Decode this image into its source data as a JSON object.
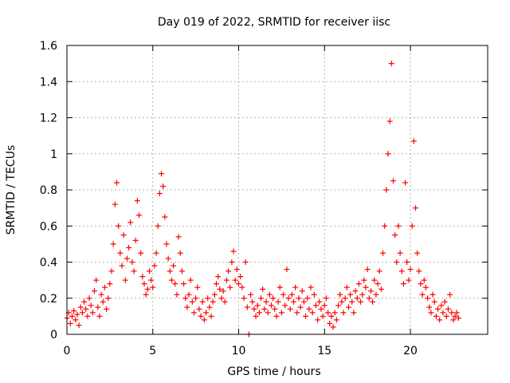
{
  "chart_data": {
    "type": "scatter",
    "title": "Day 019 of 2022, SRMTID for receiver iisc",
    "xlabel": "GPS time / hours",
    "ylabel": "SRMTID / TECUs",
    "xlim": [
      0,
      24.5
    ],
    "ylim": [
      0,
      1.6
    ],
    "x_ticks": [
      0,
      5,
      10,
      15,
      20
    ],
    "x_tick_labels": [
      "0",
      "5",
      "10",
      "15",
      "20"
    ],
    "y_ticks": [
      0,
      0.2,
      0.4,
      0.6,
      0.8,
      1.0,
      1.2,
      1.4,
      1.6
    ],
    "y_tick_labels": [
      "0",
      "0.2",
      "0.4",
      "0.6",
      "0.8",
      "1",
      "1.2",
      "1.4",
      "1.6"
    ],
    "grid": true,
    "marker": "+",
    "marker_color": "#ff0000",
    "series": [
      {
        "name": "SRMTID",
        "points": [
          [
            0.0,
            0.09
          ],
          [
            0.1,
            0.12
          ],
          [
            0.2,
            0.06
          ],
          [
            0.3,
            0.1
          ],
          [
            0.4,
            0.13
          ],
          [
            0.5,
            0.08
          ],
          [
            0.6,
            0.11
          ],
          [
            0.7,
            0.05
          ],
          [
            0.8,
            0.15
          ],
          [
            0.9,
            0.12
          ],
          [
            1.0,
            0.18
          ],
          [
            1.1,
            0.14
          ],
          [
            1.2,
            0.1
          ],
          [
            1.3,
            0.2
          ],
          [
            1.4,
            0.16
          ],
          [
            1.5,
            0.12
          ],
          [
            1.6,
            0.24
          ],
          [
            1.7,
            0.3
          ],
          [
            1.8,
            0.15
          ],
          [
            1.9,
            0.1
          ],
          [
            2.0,
            0.22
          ],
          [
            2.1,
            0.18
          ],
          [
            2.2,
            0.26
          ],
          [
            2.3,
            0.14
          ],
          [
            2.4,
            0.2
          ],
          [
            2.5,
            0.28
          ],
          [
            2.6,
            0.35
          ],
          [
            2.7,
            0.5
          ],
          [
            2.8,
            0.72
          ],
          [
            2.9,
            0.84
          ],
          [
            3.0,
            0.6
          ],
          [
            3.1,
            0.45
          ],
          [
            3.2,
            0.38
          ],
          [
            3.3,
            0.55
          ],
          [
            3.4,
            0.3
          ],
          [
            3.5,
            0.42
          ],
          [
            3.6,
            0.48
          ],
          [
            3.7,
            0.62
          ],
          [
            3.8,
            0.4
          ],
          [
            3.9,
            0.35
          ],
          [
            4.0,
            0.52
          ],
          [
            4.1,
            0.74
          ],
          [
            4.2,
            0.66
          ],
          [
            4.3,
            0.45
          ],
          [
            4.4,
            0.32
          ],
          [
            4.5,
            0.28
          ],
          [
            4.6,
            0.22
          ],
          [
            4.7,
            0.25
          ],
          [
            4.8,
            0.35
          ],
          [
            4.9,
            0.3
          ],
          [
            5.0,
            0.26
          ],
          [
            5.1,
            0.38
          ],
          [
            5.2,
            0.45
          ],
          [
            5.3,
            0.6
          ],
          [
            5.4,
            0.78
          ],
          [
            5.5,
            0.89
          ],
          [
            5.6,
            0.82
          ],
          [
            5.7,
            0.65
          ],
          [
            5.8,
            0.5
          ],
          [
            5.9,
            0.42
          ],
          [
            6.0,
            0.35
          ],
          [
            6.1,
            0.3
          ],
          [
            6.2,
            0.38
          ],
          [
            6.3,
            0.28
          ],
          [
            6.4,
            0.22
          ],
          [
            6.5,
            0.54
          ],
          [
            6.6,
            0.45
          ],
          [
            6.7,
            0.35
          ],
          [
            6.8,
            0.28
          ],
          [
            6.9,
            0.2
          ],
          [
            7.0,
            0.15
          ],
          [
            7.1,
            0.22
          ],
          [
            7.2,
            0.3
          ],
          [
            7.3,
            0.18
          ],
          [
            7.4,
            0.12
          ],
          [
            7.5,
            0.2
          ],
          [
            7.6,
            0.26
          ],
          [
            7.7,
            0.14
          ],
          [
            7.8,
            0.1
          ],
          [
            7.9,
            0.18
          ],
          [
            8.0,
            0.08
          ],
          [
            8.1,
            0.12
          ],
          [
            8.2,
            0.2
          ],
          [
            8.3,
            0.15
          ],
          [
            8.4,
            0.1
          ],
          [
            8.5,
            0.18
          ],
          [
            8.6,
            0.22
          ],
          [
            8.7,
            0.28
          ],
          [
            8.8,
            0.32
          ],
          [
            8.9,
            0.25
          ],
          [
            9.0,
            0.2
          ],
          [
            9.1,
            0.24
          ],
          [
            9.2,
            0.18
          ],
          [
            9.3,
            0.3
          ],
          [
            9.4,
            0.35
          ],
          [
            9.5,
            0.26
          ],
          [
            9.6,
            0.4
          ],
          [
            9.7,
            0.46
          ],
          [
            9.8,
            0.3
          ],
          [
            9.9,
            0.36
          ],
          [
            10.0,
            0.28
          ],
          [
            10.1,
            0.32
          ],
          [
            10.2,
            0.26
          ],
          [
            10.3,
            0.2
          ],
          [
            10.4,
            0.4
          ],
          [
            10.5,
            0.15
          ],
          [
            10.6,
            0.0
          ],
          [
            10.7,
            0.22
          ],
          [
            10.8,
            0.18
          ],
          [
            10.9,
            0.14
          ],
          [
            11.0,
            0.1
          ],
          [
            11.1,
            0.16
          ],
          [
            11.2,
            0.12
          ],
          [
            11.3,
            0.2
          ],
          [
            11.4,
            0.25
          ],
          [
            11.5,
            0.14
          ],
          [
            11.6,
            0.18
          ],
          [
            11.7,
            0.12
          ],
          [
            11.8,
            0.22
          ],
          [
            11.9,
            0.16
          ],
          [
            12.0,
            0.2
          ],
          [
            12.1,
            0.14
          ],
          [
            12.2,
            0.1
          ],
          [
            12.3,
            0.18
          ],
          [
            12.4,
            0.26
          ],
          [
            12.5,
            0.12
          ],
          [
            12.6,
            0.22
          ],
          [
            12.7,
            0.16
          ],
          [
            12.8,
            0.36
          ],
          [
            12.9,
            0.2
          ],
          [
            13.0,
            0.14
          ],
          [
            13.1,
            0.22
          ],
          [
            13.2,
            0.18
          ],
          [
            13.3,
            0.26
          ],
          [
            13.4,
            0.12
          ],
          [
            13.5,
            0.2
          ],
          [
            13.6,
            0.15
          ],
          [
            13.7,
            0.24
          ],
          [
            13.8,
            0.18
          ],
          [
            13.9,
            0.1
          ],
          [
            14.0,
            0.2
          ],
          [
            14.1,
            0.14
          ],
          [
            14.2,
            0.26
          ],
          [
            14.3,
            0.12
          ],
          [
            14.4,
            0.22
          ],
          [
            14.5,
            0.16
          ],
          [
            14.6,
            0.08
          ],
          [
            14.7,
            0.18
          ],
          [
            14.8,
            0.14
          ],
          [
            14.9,
            0.1
          ],
          [
            15.0,
            0.16
          ],
          [
            15.1,
            0.2
          ],
          [
            15.2,
            0.12
          ],
          [
            15.3,
            0.06
          ],
          [
            15.4,
            0.1
          ],
          [
            15.5,
            0.04
          ],
          [
            15.6,
            0.12
          ],
          [
            15.7,
            0.08
          ],
          [
            15.8,
            0.16
          ],
          [
            15.9,
            0.22
          ],
          [
            16.0,
            0.18
          ],
          [
            16.1,
            0.12
          ],
          [
            16.2,
            0.2
          ],
          [
            16.3,
            0.26
          ],
          [
            16.4,
            0.15
          ],
          [
            16.5,
            0.22
          ],
          [
            16.6,
            0.18
          ],
          [
            16.7,
            0.12
          ],
          [
            16.8,
            0.24
          ],
          [
            16.9,
            0.2
          ],
          [
            17.0,
            0.28
          ],
          [
            17.1,
            0.18
          ],
          [
            17.2,
            0.22
          ],
          [
            17.3,
            0.3
          ],
          [
            17.4,
            0.26
          ],
          [
            17.5,
            0.36
          ],
          [
            17.6,
            0.2
          ],
          [
            17.7,
            0.24
          ],
          [
            17.8,
            0.18
          ],
          [
            17.9,
            0.3
          ],
          [
            18.0,
            0.22
          ],
          [
            18.1,
            0.28
          ],
          [
            18.2,
            0.35
          ],
          [
            18.3,
            0.25
          ],
          [
            18.4,
            0.45
          ],
          [
            18.5,
            0.6
          ],
          [
            18.6,
            0.8
          ],
          [
            18.7,
            1.0
          ],
          [
            18.8,
            1.18
          ],
          [
            18.9,
            1.5
          ],
          [
            19.0,
            0.85
          ],
          [
            19.1,
            0.55
          ],
          [
            19.2,
            0.4
          ],
          [
            19.3,
            0.6
          ],
          [
            19.4,
            0.45
          ],
          [
            19.5,
            0.35
          ],
          [
            19.6,
            0.28
          ],
          [
            19.7,
            0.84
          ],
          [
            19.8,
            0.4
          ],
          [
            19.9,
            0.3
          ],
          [
            20.0,
            0.36
          ],
          [
            20.1,
            0.6
          ],
          [
            20.2,
            1.07
          ],
          [
            20.3,
            0.7
          ],
          [
            20.4,
            0.45
          ],
          [
            20.5,
            0.35
          ],
          [
            20.6,
            0.28
          ],
          [
            20.7,
            0.22
          ],
          [
            20.8,
            0.3
          ],
          [
            20.9,
            0.26
          ],
          [
            21.0,
            0.2
          ],
          [
            21.1,
            0.15
          ],
          [
            21.2,
            0.12
          ],
          [
            21.3,
            0.22
          ],
          [
            21.4,
            0.18
          ],
          [
            21.5,
            0.1
          ],
          [
            21.6,
            0.14
          ],
          [
            21.7,
            0.08
          ],
          [
            21.8,
            0.16
          ],
          [
            21.9,
            0.12
          ],
          [
            22.0,
            0.18
          ],
          [
            22.1,
            0.1
          ],
          [
            22.2,
            0.14
          ],
          [
            22.3,
            0.22
          ],
          [
            22.4,
            0.12
          ],
          [
            22.5,
            0.08
          ],
          [
            22.6,
            0.1
          ],
          [
            22.7,
            0.12
          ],
          [
            22.8,
            0.09
          ]
        ]
      }
    ]
  }
}
